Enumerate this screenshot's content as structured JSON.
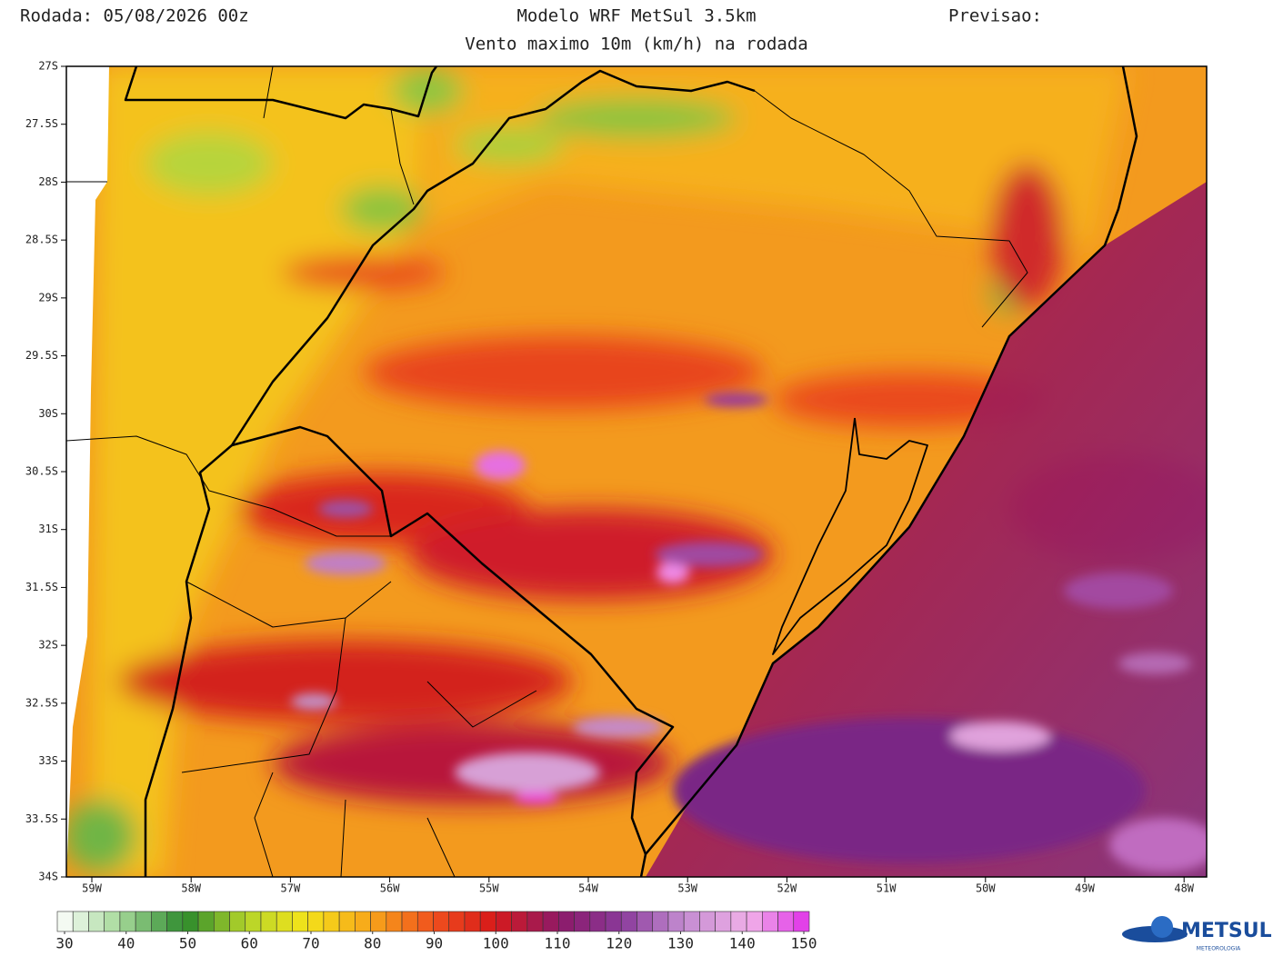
{
  "header": {
    "run": "Rodada: 05/08/2026 00z",
    "model": "Modelo WRF MetSul 3.5km",
    "forecast": "Previsao:",
    "subtitle": "Vento maximo 10m (km/h) na rodada"
  },
  "map": {
    "lat_labels": [
      "27S",
      "27.5S",
      "28S",
      "28.5S",
      "29S",
      "29.5S",
      "30S",
      "30.5S",
      "31S",
      "31.5S",
      "32S",
      "32.5S",
      "33S",
      "33.5S",
      "34S"
    ],
    "lon_labels": [
      "59W",
      "58W",
      "57W",
      "56W",
      "55W",
      "54W",
      "53W",
      "52W",
      "51W",
      "50W",
      "49W",
      "48W"
    ]
  },
  "colorbar": {
    "lim": [
      30,
      150
    ],
    "ticks": [
      30,
      40,
      50,
      60,
      70,
      80,
      90,
      100,
      110,
      120,
      130,
      140,
      150
    ]
  },
  "logo": {
    "name": "METSUL",
    "tagline": "METEOROLOGIA"
  }
}
